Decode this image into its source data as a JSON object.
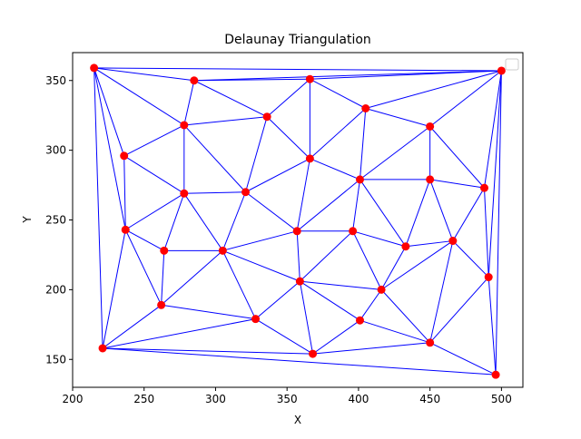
{
  "colors": {
    "edge": "#0000ff",
    "point": "#ff0000",
    "axis": "#000000",
    "background": "#ffffff"
  },
  "chart_data": {
    "type": "scatter",
    "title": "Delaunay Triangulation",
    "xlabel": "X",
    "ylabel": "Y",
    "xlim": [
      200,
      515
    ],
    "ylim": [
      130,
      370
    ],
    "grid": false,
    "legend": {
      "placement": "top-right",
      "entries": []
    },
    "xticks": [
      200,
      250,
      300,
      350,
      400,
      450,
      500
    ],
    "yticks": [
      150,
      200,
      250,
      300,
      350
    ],
    "points": [
      [
        215,
        359
      ],
      [
        285,
        350
      ],
      [
        366,
        351
      ],
      [
        500,
        357
      ],
      [
        405,
        330
      ],
      [
        336,
        324
      ],
      [
        278,
        318
      ],
      [
        450,
        317
      ],
      [
        236,
        296
      ],
      [
        366,
        294
      ],
      [
        401,
        279
      ],
      [
        450,
        279
      ],
      [
        488,
        273
      ],
      [
        278,
        269
      ],
      [
        321,
        270
      ],
      [
        237,
        243
      ],
      [
        357,
        242
      ],
      [
        396,
        242
      ],
      [
        264,
        228
      ],
      [
        305,
        228
      ],
      [
        433,
        231
      ],
      [
        466,
        235
      ],
      [
        491,
        209
      ],
      [
        359,
        206
      ],
      [
        416,
        200
      ],
      [
        262,
        189
      ],
      [
        328,
        179
      ],
      [
        401,
        178
      ],
      [
        221,
        158
      ],
      [
        450,
        162
      ],
      [
        368,
        154
      ],
      [
        496,
        139
      ]
    ],
    "edges": [
      [
        0,
        1
      ],
      [
        0,
        6
      ],
      [
        0,
        8
      ],
      [
        0,
        15
      ],
      [
        0,
        28
      ],
      [
        0,
        3
      ],
      [
        1,
        3
      ],
      [
        1,
        2
      ],
      [
        1,
        5
      ],
      [
        1,
        6
      ],
      [
        2,
        3
      ],
      [
        2,
        4
      ],
      [
        2,
        5
      ],
      [
        2,
        9
      ],
      [
        3,
        7
      ],
      [
        3,
        4
      ],
      [
        3,
        12
      ],
      [
        3,
        22
      ],
      [
        3,
        31
      ],
      [
        4,
        7
      ],
      [
        4,
        9
      ],
      [
        4,
        10
      ],
      [
        5,
        6
      ],
      [
        5,
        9
      ],
      [
        5,
        14
      ],
      [
        6,
        8
      ],
      [
        6,
        13
      ],
      [
        6,
        14
      ],
      [
        7,
        10
      ],
      [
        7,
        11
      ],
      [
        7,
        12
      ],
      [
        8,
        13
      ],
      [
        8,
        15
      ],
      [
        9,
        10
      ],
      [
        9,
        14
      ],
      [
        9,
        16
      ],
      [
        10,
        11
      ],
      [
        10,
        16
      ],
      [
        10,
        17
      ],
      [
        10,
        20
      ],
      [
        11,
        12
      ],
      [
        11,
        20
      ],
      [
        11,
        21
      ],
      [
        12,
        21
      ],
      [
        12,
        22
      ],
      [
        13,
        14
      ],
      [
        13,
        15
      ],
      [
        13,
        18
      ],
      [
        13,
        19
      ],
      [
        14,
        19
      ],
      [
        14,
        16
      ],
      [
        15,
        18
      ],
      [
        15,
        25
      ],
      [
        15,
        28
      ],
      [
        16,
        17
      ],
      [
        16,
        19
      ],
      [
        16,
        23
      ],
      [
        17,
        20
      ],
      [
        17,
        23
      ],
      [
        17,
        24
      ],
      [
        18,
        19
      ],
      [
        18,
        25
      ],
      [
        19,
        23
      ],
      [
        19,
        25
      ],
      [
        19,
        26
      ],
      [
        20,
        21
      ],
      [
        20,
        24
      ],
      [
        21,
        22
      ],
      [
        21,
        24
      ],
      [
        21,
        29
      ],
      [
        22,
        29
      ],
      [
        22,
        31
      ],
      [
        23,
        24
      ],
      [
        23,
        26
      ],
      [
        23,
        30
      ],
      [
        23,
        27
      ],
      [
        24,
        27
      ],
      [
        24,
        29
      ],
      [
        25,
        26
      ],
      [
        25,
        28
      ],
      [
        26,
        28
      ],
      [
        26,
        30
      ],
      [
        27,
        30
      ],
      [
        27,
        29
      ],
      [
        28,
        30
      ],
      [
        28,
        31
      ],
      [
        29,
        30
      ],
      [
        29,
        31
      ]
    ]
  }
}
